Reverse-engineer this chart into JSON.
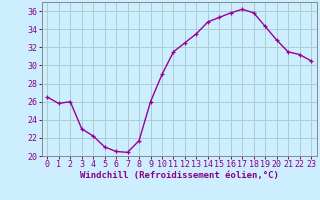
{
  "x": [
    0,
    1,
    2,
    3,
    4,
    5,
    6,
    7,
    8,
    9,
    10,
    11,
    12,
    13,
    14,
    15,
    16,
    17,
    18,
    19,
    20,
    21,
    22,
    23
  ],
  "y": [
    26.5,
    25.8,
    26.0,
    23.0,
    22.2,
    21.0,
    20.5,
    20.4,
    21.7,
    26.0,
    29.0,
    31.5,
    32.5,
    33.5,
    34.8,
    35.3,
    35.8,
    36.2,
    35.8,
    34.3,
    32.8,
    31.5,
    31.2,
    30.5
  ],
  "line_color": "#990099",
  "marker": "+",
  "bg_color": "#cceeff",
  "grid_color": "#aacccc",
  "xlabel": "Windchill (Refroidissement éolien,°C)",
  "xlim": [
    -0.5,
    23.5
  ],
  "ylim": [
    20,
    37
  ],
  "yticks": [
    20,
    22,
    24,
    26,
    28,
    30,
    32,
    34,
    36
  ],
  "xticks": [
    0,
    1,
    2,
    3,
    4,
    5,
    6,
    7,
    8,
    9,
    10,
    11,
    12,
    13,
    14,
    15,
    16,
    17,
    18,
    19,
    20,
    21,
    22,
    23
  ],
  "tick_color": "#880088",
  "label_color": "#880088",
  "axis_color": "#888888",
  "font_size_label": 6.5,
  "font_size_tick": 6.0,
  "line_width": 1.0,
  "marker_size": 3.5
}
